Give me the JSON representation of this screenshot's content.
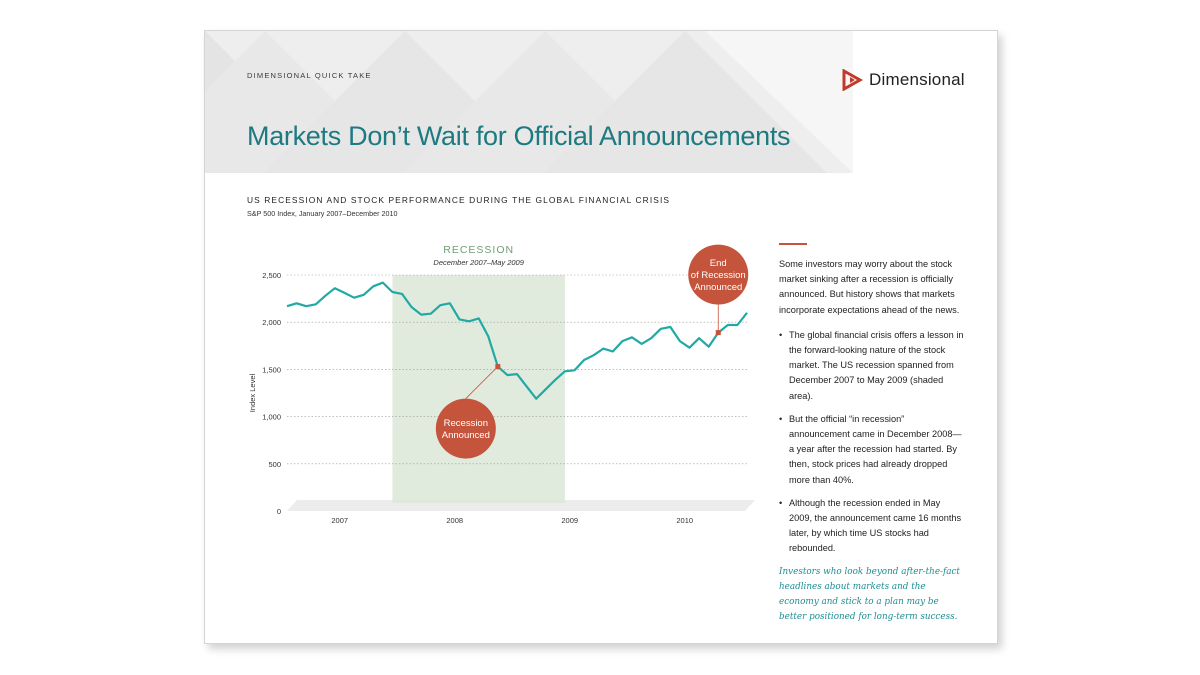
{
  "header": {
    "label": "DIMENSIONAL QUICK TAKE",
    "brand": "Dimensional",
    "title": "Markets Don’t Wait for Official Announcements"
  },
  "colors": {
    "accent": "#c5543c",
    "teal": "#1d7a80",
    "line": "#20a9a5",
    "recession_shade": "#dce8d7"
  },
  "chart_data": {
    "type": "line",
    "title": "US RECESSION AND STOCK PERFORMANCE DURING THE GLOBAL FINANCIAL CRISIS",
    "subtitle": "S&P 500 Index, January 2007–December 2010",
    "xlabel": "",
    "ylabel": "Index Level",
    "ylim": [
      0,
      2500
    ],
    "yticks": [
      "0",
      "500",
      "1,000",
      "1,500",
      "2,000",
      "2,500"
    ],
    "xticks": [
      "2007",
      "2008",
      "2009",
      "2010"
    ],
    "grid": true,
    "series": [
      {
        "values": [
          2170,
          2200,
          2170,
          2190,
          2280,
          2360,
          2310,
          2260,
          2290,
          2380,
          2420,
          2320,
          2300,
          2160,
          2080,
          2090,
          2180,
          2200,
          2030,
          2010,
          2040,
          1850,
          1530,
          1440,
          1450,
          1320,
          1190,
          1290,
          1390,
          1480,
          1490,
          1600,
          1650,
          1720,
          1690,
          1800,
          1840,
          1770,
          1830,
          1930,
          1950,
          1800,
          1730,
          1830,
          1740,
          1890,
          1970,
          1970,
          2100
        ]
      }
    ],
    "shaded_region": {
      "label": "RECESSION",
      "sublabel": "December 2007–May 2009",
      "start_index": 11,
      "end_index": 29
    },
    "annotations": [
      {
        "lines": [
          "Recession",
          "Announced"
        ],
        "point_index": 22
      },
      {
        "lines": [
          "End",
          "of Recession",
          "Announced"
        ],
        "point_index": 45
      }
    ]
  },
  "sidebar": {
    "intro": "Some investors may worry about the stock market sinking after a recession is officially announced. But history shows that markets incorporate expectations ahead of the news.",
    "bullets": [
      "The global financial crisis offers a lesson in the forward-looking nature of the stock market. The US recession spanned from December 2007 to May 2009 (shaded area).",
      "But the official “in recession” announcement came in December 2008—a year after the recession had started. By then, stock prices had already dropped more than 40%.",
      "Although the recession ended in May 2009, the announcement came 16 months later, by which time US stocks had rebounded."
    ],
    "quote": "Investors who look beyond after-the-fact headlines about markets and the economy and stick to a plan may be better positioned for long-term success."
  }
}
